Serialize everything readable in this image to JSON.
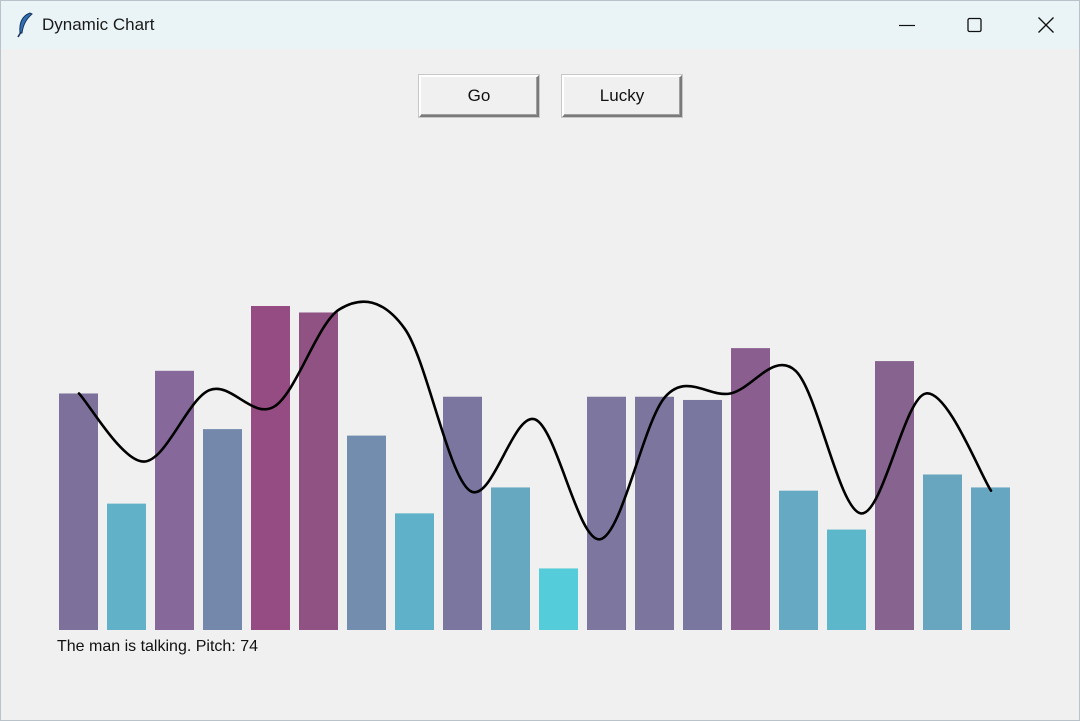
{
  "window": {
    "title": "Dynamic Chart",
    "icon": "feather-icon"
  },
  "toolbar": {
    "go_label": "Go",
    "lucky_label": "Lucky"
  },
  "status": {
    "text": "The man is talking. Pitch: 74"
  },
  "chart_data": {
    "type": "bar",
    "grid": false,
    "ylim": [
      0,
      100
    ],
    "values": [
      73,
      39,
      80,
      62,
      100,
      98,
      60,
      36,
      72,
      44,
      19,
      72,
      72,
      71,
      87,
      43,
      31,
      83,
      48,
      44
    ],
    "colors": [
      "#7d719c",
      "#61b1c8",
      "#86699a",
      "#7488ab",
      "#954c82",
      "#905283",
      "#728dad",
      "#5fb1c9",
      "#7b769f",
      "#66a8c0",
      "#54ccd9",
      "#7d769f",
      "#7c769f",
      "#79779f",
      "#8a5f8f",
      "#65a9c2",
      "#5db7ca",
      "#86648f",
      "#68a6c0",
      "#66a6c1"
    ],
    "line": {
      "type": "line",
      "color": "#000000",
      "values": [
        73,
        52,
        74,
        69,
        99,
        93,
        43,
        65,
        28,
        72,
        73,
        80,
        36,
        73,
        43
      ]
    }
  }
}
